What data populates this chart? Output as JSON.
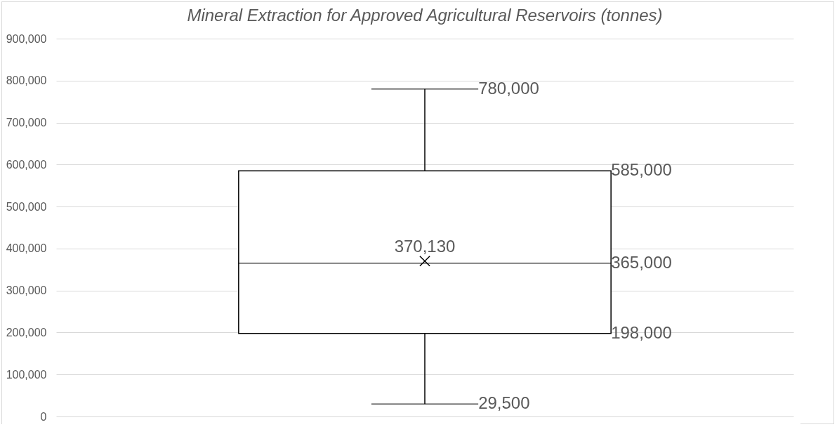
{
  "chart_data": {
    "type": "box",
    "title": "Mineral Extraction for Approved Agricultural Reservoirs (tonnes)",
    "categories": [
      null
    ],
    "boxes": [
      {
        "low": 29500,
        "q1": 198000,
        "median": 365000,
        "q3": 585000,
        "high": 780000,
        "mean": 370130
      }
    ],
    "ylim": [
      0,
      900000
    ],
    "yticks": [
      0,
      {
        "value": 100000,
        "label": "100,000"
      },
      {
        "value": 200000,
        "label": "200,000"
      },
      {
        "value": 300000,
        "label": "300,000"
      },
      {
        "value": 400000,
        "label": "400,000"
      },
      {
        "value": 500000,
        "label": "500,000"
      },
      {
        "value": 600000,
        "label": "600,000"
      },
      {
        "value": 700000,
        "label": "700,000"
      },
      {
        "value": 800000,
        "label": "800,000"
      },
      {
        "value": 900000,
        "label": "900,000"
      }
    ],
    "grid": "y",
    "marker": "cross",
    "annotations": [
      "780,000",
      "585,000",
      "370,130",
      "365,000",
      "198,000",
      "29,500"
    ]
  }
}
